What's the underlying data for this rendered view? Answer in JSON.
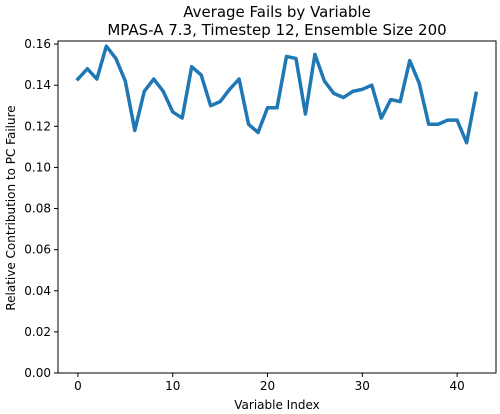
{
  "chart_data": {
    "type": "line",
    "title": "Average Fails by Variable",
    "subtitle": "MPAS-A 7.3, Timestep 12, Ensemble Size 200",
    "xlabel": "Variable Index",
    "ylabel": "Relative Contribution to PC Failure",
    "xlim": [
      -2.1,
      44.1
    ],
    "ylim": [
      0.0,
      0.1615
    ],
    "xticks": [
      0,
      10,
      20,
      30,
      40
    ],
    "xtick_labels": [
      "0",
      "10",
      "20",
      "30",
      "40"
    ],
    "yticks": [
      0.0,
      0.02,
      0.04,
      0.06,
      0.08,
      0.1,
      0.12,
      0.14,
      0.16
    ],
    "ytick_labels": [
      "0.00",
      "0.02",
      "0.04",
      "0.06",
      "0.08",
      "0.10",
      "0.12",
      "0.14",
      "0.16"
    ],
    "grid": false,
    "legend": "none",
    "line_color": "#1f77b4",
    "series": [
      {
        "x": [
          0,
          1,
          2,
          3,
          4,
          5,
          6,
          7,
          8,
          9,
          10,
          11,
          12,
          13,
          14,
          15,
          16,
          17,
          18,
          19,
          20,
          21,
          22,
          23,
          24,
          25,
          26,
          27,
          28,
          29,
          30,
          31,
          32,
          33,
          34,
          35,
          36,
          37,
          38,
          39,
          40,
          41,
          42
        ],
        "values": [
          0.143,
          0.148,
          0.143,
          0.159,
          0.153,
          0.142,
          0.118,
          0.137,
          0.143,
          0.137,
          0.127,
          0.124,
          0.149,
          0.145,
          0.13,
          0.132,
          0.138,
          0.143,
          0.121,
          0.117,
          0.129,
          0.129,
          0.154,
          0.153,
          0.126,
          0.155,
          0.142,
          0.136,
          0.134,
          0.137,
          0.138,
          0.14,
          0.124,
          0.133,
          0.132,
          0.152,
          0.141,
          0.121,
          0.121,
          0.123,
          0.123,
          0.112,
          0.136
        ]
      }
    ]
  }
}
